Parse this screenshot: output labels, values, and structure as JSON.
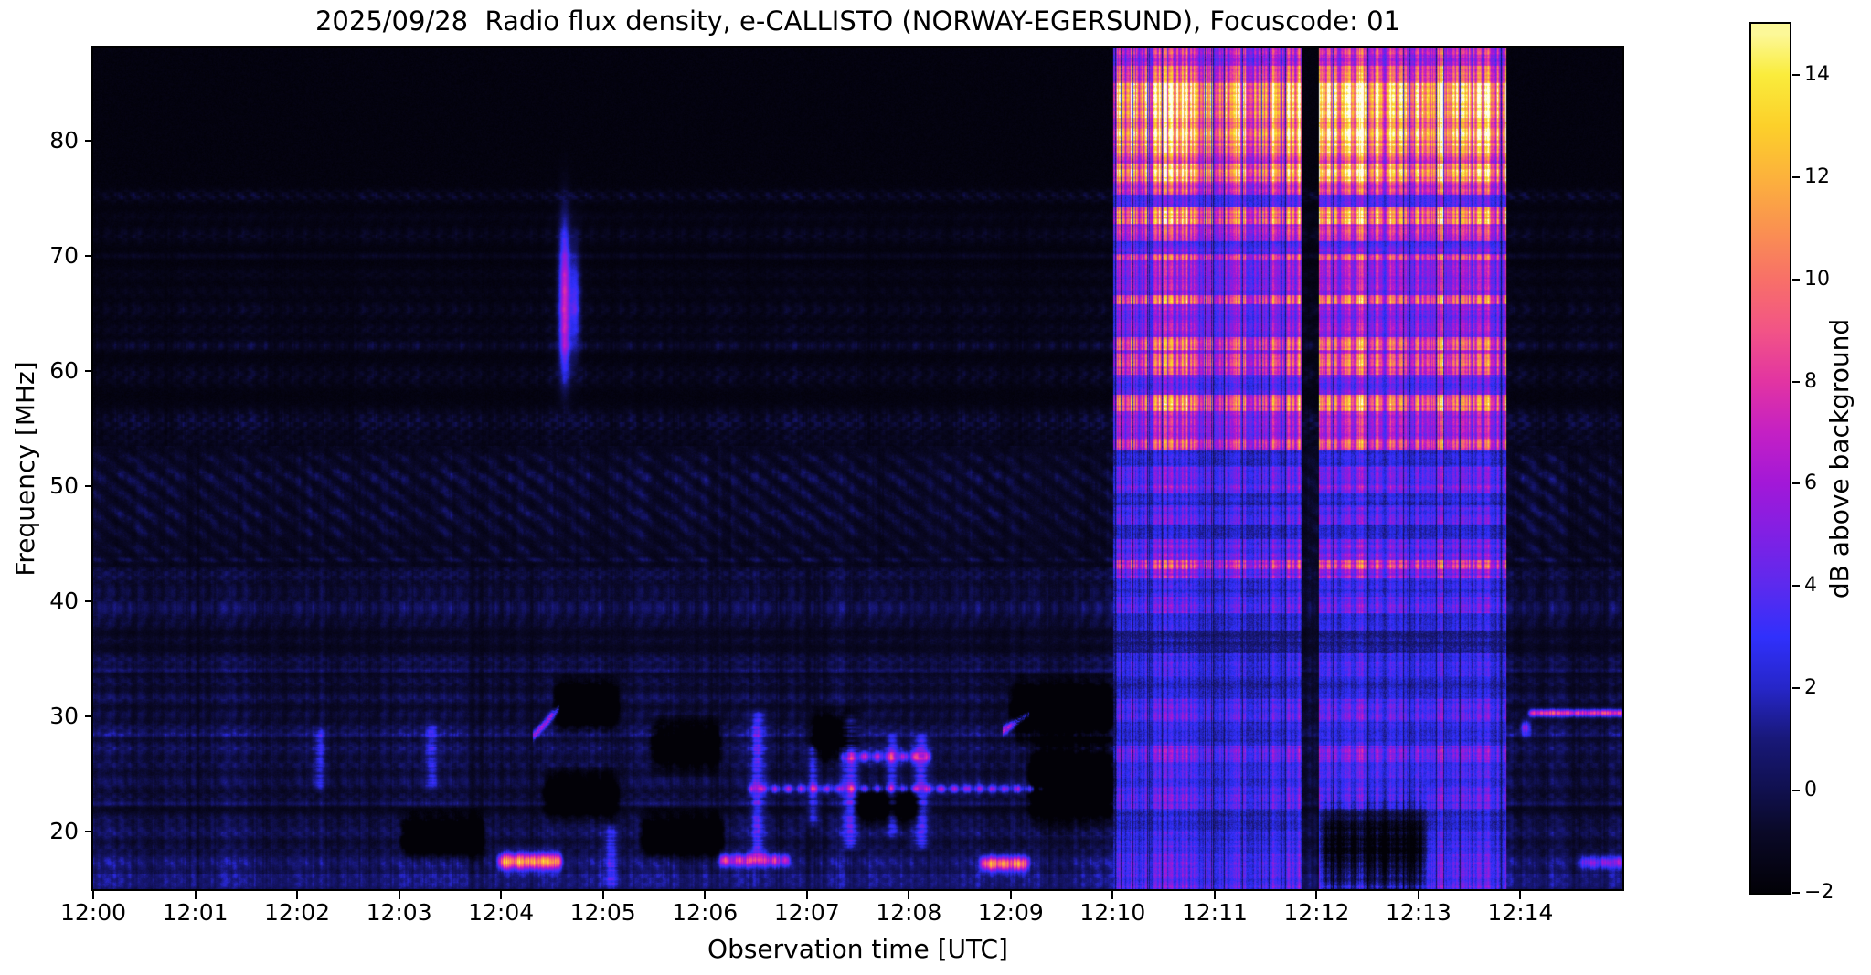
{
  "title": "2025/09/28  Radio flux density, e-CALLISTO (NORWAY-EGERSUND), Focuscode: 01",
  "axes": {
    "x_label": "Observation time [UTC]",
    "y_label": "Frequency [MHz]",
    "x_ticks": [
      "12:00",
      "12:01",
      "12:02",
      "12:03",
      "12:04",
      "12:05",
      "12:06",
      "12:07",
      "12:08",
      "12:09",
      "12:10",
      "12:11",
      "12:12",
      "12:13",
      "12:14"
    ],
    "y_ticks": [
      {
        "label": "80",
        "v": 80
      },
      {
        "label": "70",
        "v": 70
      },
      {
        "label": "60",
        "v": 60
      },
      {
        "label": "50",
        "v": 50
      },
      {
        "label": "40",
        "v": 40
      },
      {
        "label": "30",
        "v": 30
      },
      {
        "label": "20",
        "v": 20
      }
    ]
  },
  "colorbar": {
    "label": "dB above background",
    "range": [
      -2,
      15
    ],
    "ticks": [
      {
        "label": "14",
        "v": 14
      },
      {
        "label": "12",
        "v": 12
      },
      {
        "label": "10",
        "v": 10
      },
      {
        "label": "8",
        "v": 8
      },
      {
        "label": "6",
        "v": 6
      },
      {
        "label": "4",
        "v": 4
      },
      {
        "label": "2",
        "v": 2
      },
      {
        "label": "0",
        "v": 0
      },
      {
        "label": "−2",
        "v": -2
      }
    ]
  },
  "chart_data": {
    "type": "heatmap",
    "title": "2025/09/28  Radio flux density, e-CALLISTO (NORWAY-EGERSUND), Focuscode: 01",
    "xlabel": "Observation time [UTC]",
    "ylabel": "Frequency [MHz]",
    "zlabel": "dB above background",
    "time_range_min": [
      0,
      15
    ],
    "time_start_utc": "12:00",
    "freq_range_mhz": [
      15.0,
      88.1
    ],
    "value_range_db": [
      -2,
      15
    ],
    "colormap_stops": [
      {
        "v": -2.0,
        "c": [
          2,
          1,
          7
        ]
      },
      {
        "v": -0.8,
        "c": [
          10,
          9,
          40
        ]
      },
      {
        "v": 0.0,
        "c": [
          16,
          16,
          78
        ]
      },
      {
        "v": 1.0,
        "c": [
          24,
          24,
          120
        ]
      },
      {
        "v": 2.0,
        "c": [
          38,
          38,
          200
        ]
      },
      {
        "v": 3.0,
        "c": [
          48,
          48,
          252
        ]
      },
      {
        "v": 4.0,
        "c": [
          92,
          42,
          238
        ]
      },
      {
        "v": 5.0,
        "c": [
          128,
          32,
          228
        ]
      },
      {
        "v": 6.0,
        "c": [
          162,
          24,
          216
        ]
      },
      {
        "v": 7.0,
        "c": [
          196,
          32,
          196
        ]
      },
      {
        "v": 8.0,
        "c": [
          226,
          52,
          162
        ]
      },
      {
        "v": 9.0,
        "c": [
          242,
          84,
          134
        ]
      },
      {
        "v": 10.0,
        "c": [
          248,
          112,
          104
        ]
      },
      {
        "v": 11.0,
        "c": [
          250,
          146,
          80
        ]
      },
      {
        "v": 12.0,
        "c": [
          252,
          178,
          60
        ]
      },
      {
        "v": 13.0,
        "c": [
          252,
          208,
          42
        ]
      },
      {
        "v": 14.0,
        "c": [
          250,
          236,
          60
        ]
      },
      {
        "v": 14.8,
        "c": [
          252,
          248,
          152
        ]
      },
      {
        "v": 15.5,
        "c": [
          255,
          255,
          238
        ]
      }
    ],
    "quiet_bands": [
      {
        "f": 75.2,
        "w": 0.35,
        "a": 1.7,
        "d": 0.8
      },
      {
        "f": 73.4,
        "w": 0.3,
        "a": 0.6,
        "d": 0.5
      },
      {
        "f": 71.8,
        "w": 0.5,
        "a": 1.2,
        "d": 0.7
      },
      {
        "f": 70.0,
        "w": 0.18,
        "a": 1.1,
        "d": 0.3
      },
      {
        "f": 68.4,
        "w": 0.4,
        "a": 0.7,
        "d": 0.6
      },
      {
        "f": 66.9,
        "w": 0.35,
        "a": 0.8,
        "d": 0.6
      },
      {
        "f": 65.3,
        "w": 0.5,
        "a": 1.3,
        "d": 0.7
      },
      {
        "f": 63.6,
        "w": 0.4,
        "a": 1.1,
        "d": 0.6
      },
      {
        "f": 62.2,
        "w": 0.35,
        "a": 1.9,
        "d": 0.5
      },
      {
        "f": 59.6,
        "w": 0.7,
        "a": 1.4,
        "d": 0.7
      },
      {
        "f": 55.6,
        "w": 0.8,
        "a": 2.1,
        "d": 0.6
      },
      {
        "f": 53.9,
        "w": 0.4,
        "a": 1.0,
        "d": 0.5
      },
      {
        "f": 52.4,
        "w": 0.4,
        "a": 1.6,
        "d": 0.4
      },
      {
        "f": 50.8,
        "w": 0.6,
        "a": 2.4,
        "d": 0.4
      },
      {
        "f": 49.3,
        "w": 0.5,
        "a": 1.7,
        "d": 0.4
      },
      {
        "f": 47.6,
        "w": 0.6,
        "a": 2.2,
        "d": 0.4
      },
      {
        "f": 46.0,
        "w": 0.5,
        "a": 1.6,
        "d": 0.4
      },
      {
        "f": 44.5,
        "w": 0.4,
        "a": 1.5,
        "d": 0.4
      },
      {
        "f": 43.6,
        "w": 0.15,
        "a": 2.0,
        "d": 0.1
      },
      {
        "f": 42.3,
        "w": 0.5,
        "a": 1.8,
        "d": 0.5
      },
      {
        "f": 40.9,
        "w": 0.4,
        "a": 1.4,
        "d": 0.5
      },
      {
        "f": 39.4,
        "w": 0.6,
        "a": 2.6,
        "d": 0.45
      },
      {
        "f": 38.0,
        "w": 0.35,
        "a": 1.2,
        "d": 0.5
      },
      {
        "f": 36.6,
        "w": 0.3,
        "a": 1.0,
        "d": 0.5
      },
      {
        "f": 34.8,
        "w": 0.5,
        "a": 2.0,
        "d": 0.45
      },
      {
        "f": 34.0,
        "w": 0.15,
        "a": 1.8,
        "d": 0.1
      },
      {
        "f": 33.0,
        "w": 0.4,
        "a": 1.6,
        "d": 0.5
      },
      {
        "f": 31.6,
        "w": 0.4,
        "a": 2.2,
        "d": 0.4
      },
      {
        "f": 30.2,
        "w": 0.35,
        "a": 1.7,
        "d": 0.5
      },
      {
        "f": 28.9,
        "w": 0.45,
        "a": 2.3,
        "d": 0.4
      },
      {
        "f": 28.4,
        "w": 0.15,
        "a": 1.9,
        "d": 0.1
      },
      {
        "f": 27.2,
        "w": 0.5,
        "a": 2.5,
        "d": 0.4
      },
      {
        "f": 25.8,
        "w": 0.4,
        "a": 2.0,
        "d": 0.45
      },
      {
        "f": 24.3,
        "w": 0.5,
        "a": 2.2,
        "d": 0.4
      },
      {
        "f": 22.9,
        "w": 0.35,
        "a": 1.6,
        "d": 0.5
      },
      {
        "f": 22.4,
        "w": 0.15,
        "a": 1.9,
        "d": 0.1
      },
      {
        "f": 21.1,
        "w": 0.4,
        "a": 1.8,
        "d": 0.5
      },
      {
        "f": 19.9,
        "w": 0.5,
        "a": 2.6,
        "d": 0.35
      },
      {
        "f": 18.6,
        "w": 0.3,
        "a": 1.5,
        "d": 0.5
      },
      {
        "f": 17.3,
        "w": 0.6,
        "a": 3.3,
        "d": 0.25
      },
      {
        "f": 16.2,
        "w": 0.3,
        "a": 1.8,
        "d": 0.4
      },
      {
        "f": 15.4,
        "w": 0.4,
        "a": 2.4,
        "d": 0.3
      }
    ],
    "crosshatch_zone": {
      "f_lo": 43.0,
      "f_hi": 53.5
    },
    "burst_windows": [
      {
        "t0": 10.005,
        "t1": 11.855
      },
      {
        "t0": 12.02,
        "t1": 13.865
      }
    ],
    "burst_profile": [
      [
        86.5,
        88.1,
        8.0
      ],
      [
        85.0,
        86.5,
        10.5
      ],
      [
        82.0,
        85.0,
        14.6
      ],
      [
        81.0,
        82.0,
        11.5
      ],
      [
        79.0,
        81.0,
        13.6
      ],
      [
        78.0,
        79.0,
        10.0
      ],
      [
        76.5,
        78.0,
        13.0
      ],
      [
        75.3,
        76.5,
        9.5
      ],
      [
        74.2,
        75.3,
        4.5
      ],
      [
        72.8,
        74.2,
        11.5
      ],
      [
        71.3,
        72.8,
        8.5
      ],
      [
        70.2,
        71.3,
        4.5
      ],
      [
        69.7,
        70.2,
        9.0
      ],
      [
        66.6,
        69.7,
        6.5
      ],
      [
        65.8,
        66.6,
        10.5
      ],
      [
        62.9,
        65.8,
        6.0
      ],
      [
        61.8,
        62.9,
        10.5
      ],
      [
        61.5,
        61.8,
        7.0
      ],
      [
        59.7,
        61.5,
        9.5
      ],
      [
        57.9,
        59.7,
        5.0
      ],
      [
        56.5,
        57.9,
        11.0
      ],
      [
        54.1,
        56.5,
        7.0
      ],
      [
        53.1,
        54.1,
        9.0
      ],
      [
        51.7,
        53.1,
        3.0
      ],
      [
        49.4,
        51.7,
        5.2
      ],
      [
        48.3,
        49.4,
        2.5
      ],
      [
        46.7,
        48.3,
        4.5
      ],
      [
        45.4,
        46.7,
        2.5
      ],
      [
        43.6,
        45.4,
        5.0
      ],
      [
        42.8,
        43.6,
        8.5
      ],
      [
        42.0,
        42.8,
        6.0
      ],
      [
        40.4,
        42.0,
        3.0
      ],
      [
        39.0,
        40.4,
        4.5
      ],
      [
        37.5,
        39.0,
        2.5
      ],
      [
        35.5,
        37.5,
        1.5
      ],
      [
        33.5,
        35.5,
        3.5
      ],
      [
        31.5,
        33.5,
        2.5
      ],
      [
        29.5,
        31.5,
        4.2
      ],
      [
        27.5,
        29.5,
        3.0
      ],
      [
        26.0,
        27.5,
        5.5
      ],
      [
        24.0,
        26.0,
        3.5
      ],
      [
        22.0,
        24.0,
        4.5
      ],
      [
        20.0,
        22.0,
        2.5
      ],
      [
        18.0,
        20.0,
        3.5
      ],
      [
        15.0,
        18.0,
        4.5
      ]
    ],
    "features": [
      {
        "kind": "blob",
        "t": 4.625,
        "st": 0.04,
        "f": 67.5,
        "sf": 3.8,
        "a": 8.2
      },
      {
        "kind": "blob",
        "t": 4.625,
        "st": 0.04,
        "f": 62.0,
        "sf": 2.5,
        "a": 4.0
      },
      {
        "kind": "blob",
        "t": 4.73,
        "st": 0.035,
        "f": 66.0,
        "sf": 3.2,
        "a": 4.8
      },
      {
        "kind": "hseg",
        "t0": 3.95,
        "t1": 4.62,
        "f": 17.4,
        "w": 0.5,
        "a": 12.0,
        "d": 0.2
      },
      {
        "kind": "hseg",
        "t0": 8.68,
        "t1": 9.2,
        "f": 17.2,
        "w": 0.45,
        "a": 10.5,
        "d": 0.2
      },
      {
        "kind": "hseg",
        "t0": 6.1,
        "t1": 6.85,
        "f": 17.5,
        "w": 0.4,
        "a": 7.5,
        "d": 0.3
      },
      {
        "kind": "hseg",
        "t0": 14.55,
        "t1": 15.05,
        "f": 17.3,
        "w": 0.4,
        "a": 5.0,
        "d": 0.3
      },
      {
        "kind": "hseg",
        "t0": 14.06,
        "t1": 15.05,
        "f": 30.3,
        "w": 0.22,
        "a": 9.0,
        "d": 0.15
      },
      {
        "kind": "hseg",
        "t0": 13.98,
        "t1": 14.12,
        "f": 29.0,
        "w": 0.45,
        "a": 5.5,
        "d": 0.1
      },
      {
        "kind": "hseg",
        "t0": 7.3,
        "t1": 8.25,
        "f": 26.5,
        "w": 0.3,
        "a": 7.0,
        "d": 0.5
      },
      {
        "kind": "hseg",
        "t0": 6.4,
        "t1": 9.35,
        "f": 23.7,
        "w": 0.25,
        "a": 6.5,
        "d": 0.6
      },
      {
        "kind": "diag",
        "t0": 4.32,
        "t1": 4.56,
        "f0": 28.3,
        "f1": 30.6,
        "w": 0.3,
        "a": 6.0
      },
      {
        "kind": "diag",
        "t0": 8.93,
        "t1": 9.17,
        "f0": 28.8,
        "f1": 30.2,
        "w": 0.3,
        "a": 7.0
      },
      {
        "kind": "vstreak",
        "t": 6.52,
        "st": 0.05,
        "f0": 18.0,
        "f1": 30.0,
        "a": 4.5
      },
      {
        "kind": "vstreak",
        "t": 7.06,
        "st": 0.04,
        "f0": 21.0,
        "f1": 27.0,
        "a": 4.0
      },
      {
        "kind": "vstreak",
        "t": 7.43,
        "st": 0.05,
        "f0": 19.0,
        "f1": 29.5,
        "a": 5.5
      },
      {
        "kind": "vstreak",
        "t": 7.84,
        "st": 0.04,
        "f0": 20.0,
        "f1": 28.0,
        "a": 4.0
      },
      {
        "kind": "vstreak",
        "t": 8.12,
        "st": 0.05,
        "f0": 19.0,
        "f1": 28.0,
        "a": 5.0
      },
      {
        "kind": "vstreak",
        "t": 2.22,
        "st": 0.04,
        "f0": 24.0,
        "f1": 28.5,
        "a": 3.2
      },
      {
        "kind": "vstreak",
        "t": 3.32,
        "st": 0.04,
        "f0": 24.0,
        "f1": 29.0,
        "a": 3.2
      },
      {
        "kind": "vstreak",
        "t": 5.08,
        "st": 0.045,
        "f0": 15.5,
        "f1": 20.0,
        "a": 4.2
      },
      {
        "kind": "dark",
        "t0": 4.55,
        "t1": 5.12,
        "f": 31.0,
        "w": 1.2,
        "a": 5.0
      },
      {
        "kind": "dark",
        "t0": 5.5,
        "t1": 6.12,
        "f": 27.5,
        "w": 1.2,
        "a": 5.0
      },
      {
        "kind": "dark",
        "t0": 4.45,
        "t1": 5.12,
        "f": 23.2,
        "w": 1.1,
        "a": 5.0
      },
      {
        "kind": "dark",
        "t0": 3.05,
        "t1": 3.8,
        "f": 19.6,
        "w": 1.1,
        "a": 5.0
      },
      {
        "kind": "dark",
        "t0": 5.4,
        "t1": 6.15,
        "f": 19.6,
        "w": 1.1,
        "a": 5.0
      },
      {
        "kind": "dark",
        "t0": 7.08,
        "t1": 7.48,
        "f": 28.2,
        "w": 1.2,
        "a": 4.5
      },
      {
        "kind": "dark",
        "t0": 9.03,
        "t1": 9.99,
        "f": 30.5,
        "w": 1.4,
        "a": 5.5
      },
      {
        "kind": "dark",
        "t0": 9.2,
        "t1": 9.99,
        "f": 24.2,
        "w": 2.0,
        "a": 5.0
      },
      {
        "kind": "dark",
        "t0": 7.5,
        "t1": 8.1,
        "f": 22.3,
        "w": 1.0,
        "a": 4.0
      },
      {
        "kind": "dark",
        "t0": 12.06,
        "t1": 13.05,
        "f": 18.2,
        "w": 2.6,
        "a": 5.0
      }
    ]
  }
}
